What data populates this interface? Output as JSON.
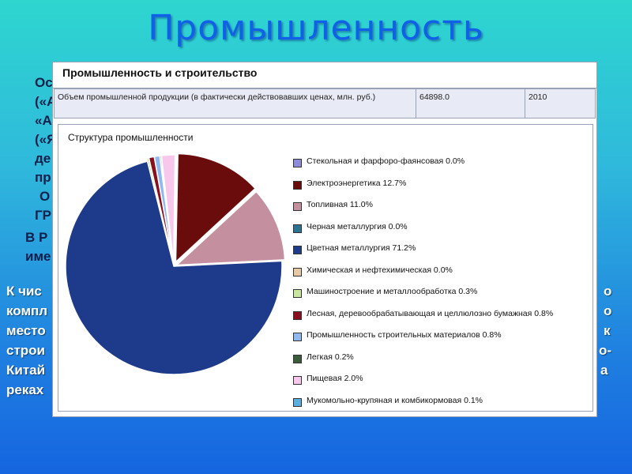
{
  "slide": {
    "title": "Промышленность",
    "bg_left": [
      "Ос",
      "(«А",
      "«А",
      "(«Я",
      "де",
      "пр",
      "О",
      "ГР",
      "В Р",
      "име"
    ],
    "bg_row_left": [
      "К чис",
      "компл",
      "место",
      "строи",
      "Китай",
      "реках"
    ],
    "bg_row_right": [
      "о",
      "о",
      "к",
      "о-",
      "а"
    ]
  },
  "panel": {
    "title": "Промышленность и строительство",
    "info_label": "Объем промышленной продукции (в фактически действовавших ценах, млн. руб.)",
    "info_value": "64898.0",
    "info_year": "2010"
  },
  "chart_data": {
    "type": "pie",
    "title": "Структура промышленности",
    "legend_position": "right",
    "slices": [
      {
        "name": "Стекольная и фарфоро-фаянсовая",
        "value": 0.0,
        "label": "Стекольная и фарфоро-фаянсовая  0.0%",
        "color": "#8c8cd9"
      },
      {
        "name": "Электроэнергетика",
        "value": 12.7,
        "label": "Электроэнергетика  12.7%",
        "color": "#6b0c0c"
      },
      {
        "name": "Топливная",
        "value": 11.0,
        "label": "Топливная  11.0%",
        "color": "#c48f9e"
      },
      {
        "name": "Черная металлургия",
        "value": 0.0,
        "label": "Черная металлургия  0.0%",
        "color": "#2c7393"
      },
      {
        "name": "Цветная металлургия",
        "value": 71.2,
        "label": "Цветная металлургия  71.2%",
        "color": "#1e3a8a"
      },
      {
        "name": "Химическая и нефтехимическая",
        "value": 0.0,
        "label": "Химическая и нефтехимическая  0.0%",
        "color": "#e8c9a5"
      },
      {
        "name": "Машиностроение и металлообработка",
        "value": 0.3,
        "label": "Машиностроение и металлообработка  0.3%",
        "color": "#c8e6a0"
      },
      {
        "name": "Лесная, деревообрабатывающая и целлюлозно бумажная",
        "value": 0.8,
        "label": "Лесная, деревообрабатывающая и целлюлозно бумажная  0.8%",
        "color": "#8a0f1e"
      },
      {
        "name": "Промышленность строительных материалов",
        "value": 0.8,
        "label": "Промышленность строительных материалов  0.8%",
        "color": "#90b8f0"
      },
      {
        "name": "Легкая",
        "value": 0.2,
        "label": "Легкая  0.2%",
        "color": "#3c5a3c"
      },
      {
        "name": "Пищевая",
        "value": 2.0,
        "label": "Пищевая  2.0%",
        "color": "#f8c8ec"
      },
      {
        "name": "Мукомольно-крупяная и комбикормовая",
        "value": 0.1,
        "label": "Мукомольно-крупяная и комбикормовая  0.1%",
        "color": "#5aaee0"
      }
    ]
  }
}
